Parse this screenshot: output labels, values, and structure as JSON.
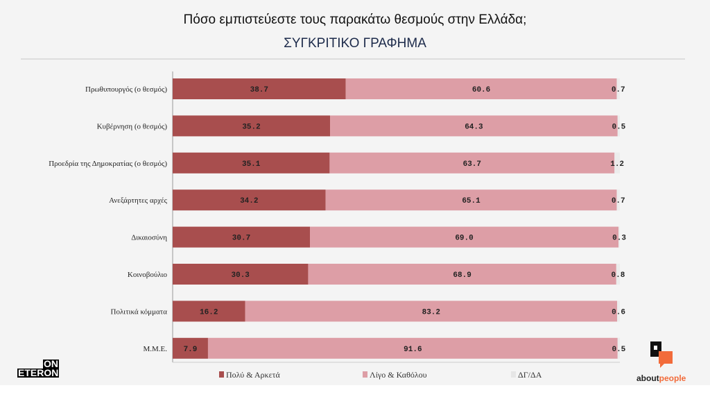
{
  "title": "Πόσο εμπιστεύεστε τους παρακάτω θεσμούς στην Ελλάδα;",
  "subtitle": "ΣΥΓΚΡΙΤΙΚΟ ΓΡΑΦΗΜΑ",
  "logos": {
    "left": "ON ETERON",
    "right_a": "about",
    "right_b": "people"
  },
  "chart_data": {
    "type": "bar",
    "orientation": "horizontal",
    "stacked": true,
    "categories": [
      "Πρωθυπουργός (ο θεσμός)",
      "Κυβέρνηση (ο θεσμός)",
      "Προεδρία της Δημοκρατίας (ο θεσμός)",
      "Ανεξάρτητες αρχές",
      "Δικαιοσύνη",
      "Κοινοβούλιο",
      "Πολιτικά κόμματα",
      "Μ.Μ.Ε."
    ],
    "series": [
      {
        "name": "Πολύ & Αρκετά",
        "color": "#a84e4e",
        "values": [
          38.7,
          35.2,
          35.1,
          34.2,
          30.7,
          30.3,
          16.2,
          7.9
        ]
      },
      {
        "name": "Λίγο & Καθόλου",
        "color": "#dd9ea6",
        "values": [
          60.6,
          64.3,
          63.7,
          65.1,
          69.0,
          68.9,
          83.2,
          91.6
        ]
      },
      {
        "name": "ΔΓ/ΔΑ",
        "color": "#ececec",
        "values": [
          0.7,
          0.5,
          1.2,
          0.7,
          0.3,
          0.8,
          0.6,
          0.5
        ]
      }
    ],
    "xlim": [
      0,
      100
    ],
    "grid": false,
    "legend": "bottom"
  }
}
